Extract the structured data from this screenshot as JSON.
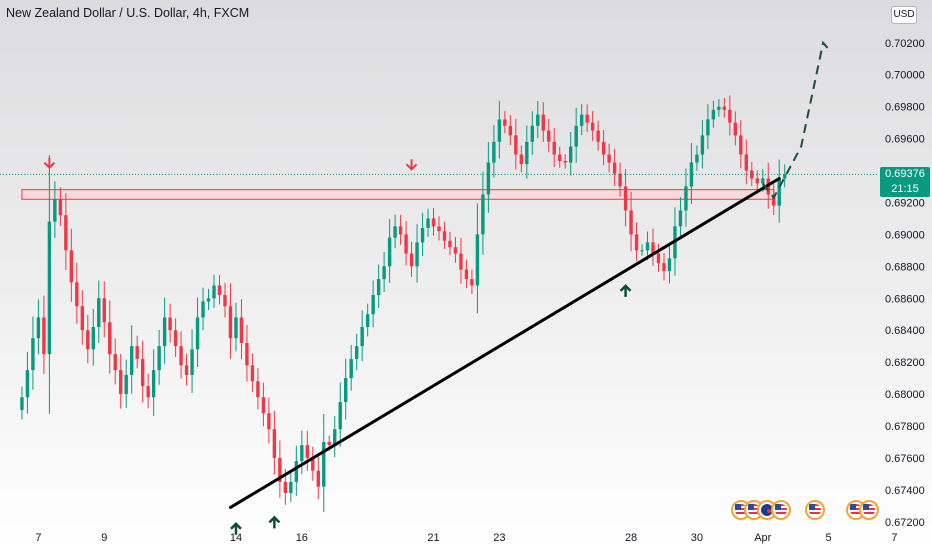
{
  "header": {
    "title": "New Zealand Dollar / U.S. Dollar, 4h, FXCM",
    "currency": "USD"
  },
  "price_tag": {
    "price": "0.69376",
    "countdown": "21:15",
    "color": "#089981"
  },
  "colors": {
    "up": "#089981",
    "down": "#f23645",
    "resistance_fill": "#f8d7da",
    "resistance_stroke": "#f23645",
    "trendline": "#000000",
    "forecast": "#1e4d43",
    "marker_arrows_down": "#f23645",
    "marker_arrows_up": "#0f4c3a"
  },
  "chart_data": {
    "type": "candlestick",
    "symbol": "NZDUSD",
    "interval": "4h",
    "ylim": [
      0.6718,
      0.7028
    ],
    "xlim": [
      -4,
      156
    ],
    "y_ticks": [
      "0.70200",
      "0.70000",
      "0.69800",
      "0.69600",
      "0.69400",
      "0.69200",
      "0.69000",
      "0.68800",
      "0.68600",
      "0.68400",
      "0.68200",
      "0.68000",
      "0.67800",
      "0.67600",
      "0.67400",
      "0.67200"
    ],
    "x_ticks": [
      {
        "label": "7",
        "x": 3
      },
      {
        "label": "9",
        "x": 15
      },
      {
        "label": "14",
        "x": 39
      },
      {
        "label": "16",
        "x": 51
      },
      {
        "label": "21",
        "x": 75
      },
      {
        "label": "23",
        "x": 87
      },
      {
        "label": "28",
        "x": 111
      },
      {
        "label": "30",
        "x": 123
      },
      {
        "label": "Apr",
        "x": 135
      },
      {
        "label": "5",
        "x": 147
      },
      {
        "label": "7",
        "x": 159
      }
    ],
    "closes": [
      0.6798,
      0.6815,
      0.6835,
      0.6848,
      0.6825,
      0.6908,
      0.6922,
      0.6912,
      0.689,
      0.687,
      0.6855,
      0.684,
      0.6828,
      0.6842,
      0.686,
      0.6845,
      0.6825,
      0.6815,
      0.68,
      0.6812,
      0.683,
      0.6822,
      0.6805,
      0.6798,
      0.6815,
      0.683,
      0.6848,
      0.684,
      0.683,
      0.6818,
      0.6812,
      0.6828,
      0.6848,
      0.6858,
      0.686,
      0.6868,
      0.6862,
      0.6855,
      0.6835,
      0.6848,
      0.6832,
      0.6818,
      0.6808,
      0.6798,
      0.6788,
      0.6778,
      0.676,
      0.6745,
      0.6738,
      0.6745,
      0.6758,
      0.6768,
      0.676,
      0.6752,
      0.6742,
      0.677,
      0.6768,
      0.6778,
      0.6795,
      0.681,
      0.6822,
      0.683,
      0.6842,
      0.685,
      0.6862,
      0.6872,
      0.688,
      0.6898,
      0.6905,
      0.69,
      0.6888,
      0.688,
      0.6895,
      0.6904,
      0.691,
      0.6905,
      0.6902,
      0.6896,
      0.6892,
      0.6888,
      0.6878,
      0.6872,
      0.6868,
      0.69,
      0.6925,
      0.6945,
      0.6958,
      0.6972,
      0.6968,
      0.6962,
      0.695,
      0.6944,
      0.6958,
      0.6968,
      0.6975,
      0.6965,
      0.6958,
      0.695,
      0.6946,
      0.6945,
      0.6955,
      0.6968,
      0.6975,
      0.697,
      0.6965,
      0.6958,
      0.695,
      0.6945,
      0.6938,
      0.693,
      0.6915,
      0.69,
      0.689,
      0.689,
      0.6895,
      0.6888,
      0.6882,
      0.6877,
      0.6885,
      0.6905,
      0.6915,
      0.693,
      0.6945,
      0.695,
      0.6962,
      0.6972,
      0.6978,
      0.698,
      0.6978,
      0.697,
      0.6962,
      0.695,
      0.694,
      0.6935,
      0.6932,
      0.6935,
      0.6925,
      0.6918,
      0.6935,
      0.69376
    ],
    "resistance_zone": {
      "y0": 0.6922,
      "y1": 0.6928,
      "x0": 0,
      "x1": 137
    },
    "trendline": [
      [
        38,
        0.6729
      ],
      [
        138,
        0.6935
      ]
    ],
    "forecast_path": [
      [
        135,
        0.6932
      ],
      [
        137,
        0.6923
      ],
      [
        142,
        0.6955
      ],
      [
        146,
        0.702
      ],
      [
        147,
        0.7016
      ]
    ],
    "down_markers": [
      [
        5,
        0.6933
      ],
      [
        71,
        0.6932
      ]
    ],
    "up_markers": [
      [
        39,
        0.672
      ],
      [
        46,
        0.6724
      ],
      [
        110,
        0.6869
      ]
    ]
  }
}
